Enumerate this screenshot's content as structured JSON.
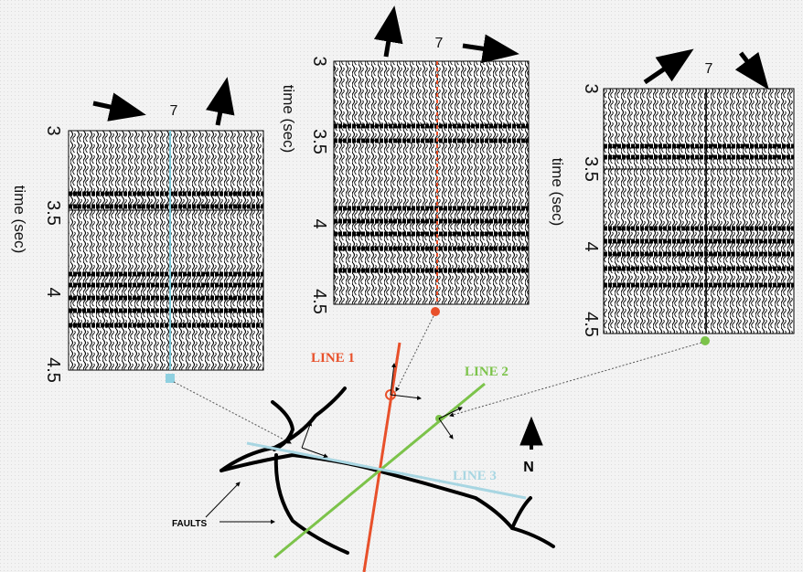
{
  "panels": [
    {
      "axis_label": "time (sec)",
      "ticks": [
        "3",
        "3.5",
        "4",
        "4.5"
      ],
      "trace_label": "7"
    },
    {
      "axis_label": "time (sec)",
      "ticks": [
        "3",
        "3.5",
        "4",
        "4.5"
      ],
      "trace_label": "7"
    },
    {
      "axis_label": "time (sec)",
      "ticks": [
        "3",
        "3.5",
        "4",
        "4.5"
      ],
      "trace_label": "7"
    }
  ],
  "map": {
    "line1": "LINE 1",
    "line2": "LINE 2",
    "line3": "LINE 3",
    "north": "N",
    "faults": "FAULTS"
  }
}
